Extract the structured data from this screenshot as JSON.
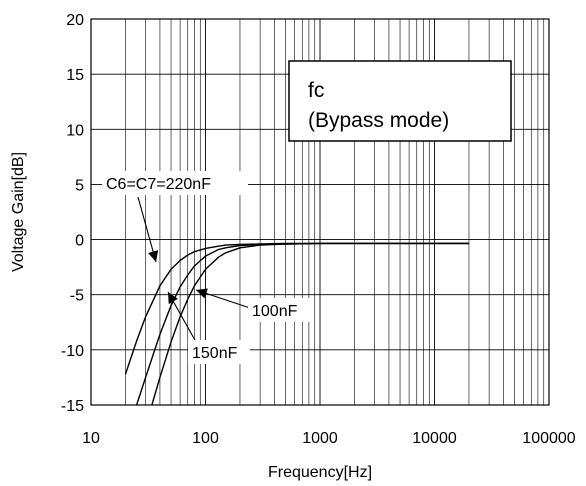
{
  "chart_data": {
    "type": "line",
    "xlabel": "Frequency[Hz]",
    "ylabel": "Voltage Gain[dB]",
    "x_scale": "log",
    "xlim": [
      10,
      100000
    ],
    "ylim": [
      -15,
      20
    ],
    "x_ticks": [
      "10",
      "100",
      "1000",
      "10000",
      "100000"
    ],
    "y_ticks": [
      "20",
      "15",
      "10",
      "5",
      "0",
      "-5",
      "-10",
      "-15"
    ],
    "grid": true,
    "legend_box": {
      "line1": "fc",
      "line2": "(Bypass mode)"
    },
    "annotations": {
      "c220": "C6=C7=220nF",
      "c150": "150nF",
      "c100": "100nF"
    },
    "series": [
      {
        "x": [
          20,
          25,
          30,
          40,
          50,
          60,
          70,
          80,
          100,
          130,
          150,
          200,
          300,
          500,
          1000,
          5000,
          20000
        ],
        "y": [
          -12.2,
          -9.2,
          -7.0,
          -4.2,
          -2.7,
          -1.9,
          -1.4,
          -1.1,
          -0.8,
          -0.6,
          -0.5,
          -0.45,
          -0.4,
          -0.35,
          -0.35,
          -0.35,
          -0.35
        ]
      },
      {
        "x": [
          25,
          30,
          40,
          50,
          60,
          70,
          80,
          100,
          130,
          150,
          200,
          300,
          500,
          1000,
          5000,
          20000
        ],
        "y": [
          -15,
          -12.5,
          -8.6,
          -6.0,
          -4.3,
          -3.2,
          -2.4,
          -1.5,
          -0.9,
          -0.75,
          -0.55,
          -0.45,
          -0.4,
          -0.35,
          -0.35,
          -0.35
        ]
      },
      {
        "x": [
          34,
          40,
          50,
          60,
          70,
          80,
          100,
          130,
          150,
          200,
          300,
          500,
          1000,
          5000,
          20000
        ],
        "y": [
          -15,
          -12.5,
          -9.3,
          -7.0,
          -5.4,
          -4.2,
          -2.7,
          -1.6,
          -1.2,
          -0.75,
          -0.5,
          -0.4,
          -0.35,
          -0.35,
          -0.35
        ]
      }
    ]
  }
}
